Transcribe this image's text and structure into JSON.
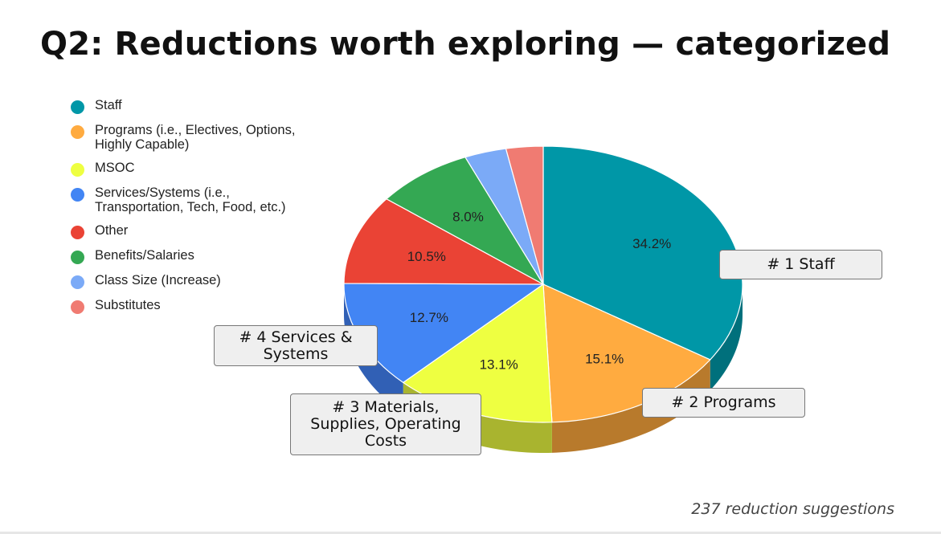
{
  "slide": {
    "title": "Q2: Reductions worth exploring — categorized",
    "footnote": "237 reduction suggestions"
  },
  "chart_data": {
    "type": "pie",
    "title": "",
    "legend_position": "left",
    "categories": [
      "Staff",
      "Programs (i.e., Electives, Options,\nHighly Capable)",
      "MSOC",
      "Services/Systems (i.e.,\nTransportation, Tech, Food, etc.)",
      "Other",
      "Benefits/Salaries",
      "Class Size (Increase)",
      "Substitutes"
    ],
    "values": [
      34.2,
      15.1,
      13.1,
      12.7,
      10.5,
      8.0,
      3.4,
      3.0
    ],
    "data_labels": [
      "34.2%",
      "15.1%",
      "13.1%",
      "12.7%",
      "10.5%",
      "8.0%",
      "",
      ""
    ],
    "colors": [
      "#0097a7",
      "#ffab40",
      "#eeff41",
      "#4285f4",
      "#ea4335",
      "#34a853",
      "#7baaf7",
      "#f07b72"
    ],
    "side_colors": [
      "#00707c",
      "#b87a2c",
      "#a9b42f",
      "#3160b5",
      "#a83028",
      "#257a3c",
      "#577bb3",
      "#ad5850"
    ]
  },
  "callouts": [
    {
      "text": "# 1  Staff"
    },
    {
      "text": "# 2  Programs"
    },
    {
      "text": "# 3  Materials,\nSupplies, Operating\nCosts"
    },
    {
      "text": "# 4  Services &\nSystems"
    }
  ]
}
